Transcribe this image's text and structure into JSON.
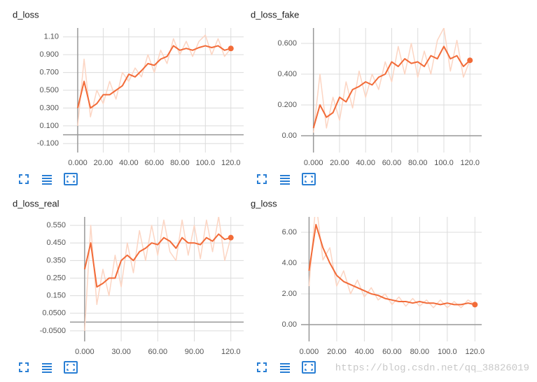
{
  "chart_data": [
    {
      "type": "line",
      "title": "d_loss",
      "x": [
        0,
        5,
        10,
        15,
        20,
        25,
        30,
        35,
        40,
        45,
        50,
        55,
        60,
        65,
        70,
        75,
        80,
        85,
        90,
        95,
        100,
        105,
        110,
        115,
        120
      ],
      "xlim": [
        -11.5,
        130
      ],
      "ylim": [
        -0.2,
        1.2
      ],
      "xticks": [
        {
          "value": 0,
          "label": "0.000"
        },
        {
          "value": 20,
          "label": "20.00"
        },
        {
          "value": 40,
          "label": "40.00"
        },
        {
          "value": 60,
          "label": "60.00"
        },
        {
          "value": 80,
          "label": "80.00"
        },
        {
          "value": 100,
          "label": "100.0"
        },
        {
          "value": 120,
          "label": "120.0"
        }
      ],
      "yticks": [
        {
          "value": -0.1,
          "label": "-0.100"
        },
        {
          "value": 0.1,
          "label": "0.100"
        },
        {
          "value": 0.3,
          "label": "0.300"
        },
        {
          "value": 0.5,
          "label": "0.500"
        },
        {
          "value": 0.7,
          "label": "0.700"
        },
        {
          "value": 0.9,
          "label": "0.900"
        },
        {
          "value": 1.1,
          "label": "1.10"
        }
      ],
      "grid": true,
      "series": [
        {
          "color": "#fcd5c3",
          "values": [
            0.1,
            0.85,
            0.2,
            0.5,
            0.35,
            0.6,
            0.4,
            0.7,
            0.6,
            0.75,
            0.65,
            0.9,
            0.7,
            0.95,
            0.8,
            1.08,
            0.9,
            1.05,
            0.88,
            1.05,
            1.12,
            0.9,
            1.08,
            0.88,
            0.97
          ]
        },
        {
          "color": "#f26b38",
          "values": [
            0.3,
            0.6,
            0.3,
            0.35,
            0.45,
            0.45,
            0.5,
            0.55,
            0.68,
            0.65,
            0.72,
            0.8,
            0.78,
            0.85,
            0.88,
            1.0,
            0.95,
            0.97,
            0.95,
            0.98,
            1.0,
            0.98,
            1.0,
            0.95,
            0.97
          ]
        }
      ]
    },
    {
      "type": "line",
      "title": "d_loss_fake",
      "x": [
        0,
        5,
        10,
        15,
        20,
        25,
        30,
        35,
        40,
        45,
        50,
        55,
        60,
        65,
        70,
        75,
        80,
        85,
        90,
        95,
        100,
        105,
        110,
        115,
        120
      ],
      "xlim": [
        -9.5,
        129
      ],
      "ylim": [
        -0.109,
        0.7
      ],
      "xticks": [
        {
          "value": 0,
          "label": "0.000"
        },
        {
          "value": 20,
          "label": "20.00"
        },
        {
          "value": 40,
          "label": "40.00"
        },
        {
          "value": 60,
          "label": "60.00"
        },
        {
          "value": 80,
          "label": "80.00"
        },
        {
          "value": 100,
          "label": "100.0"
        },
        {
          "value": 120,
          "label": "120.0"
        }
      ],
      "yticks": [
        {
          "value": 0,
          "label": "0.00"
        },
        {
          "value": 0.2,
          "label": "0.200"
        },
        {
          "value": 0.4,
          "label": "0.400"
        },
        {
          "value": 0.6,
          "label": "0.600"
        }
      ],
      "grid": true,
      "series": [
        {
          "color": "#fcd5c3",
          "values": [
            0.02,
            0.4,
            0.05,
            0.25,
            0.1,
            0.35,
            0.18,
            0.42,
            0.25,
            0.4,
            0.3,
            0.48,
            0.35,
            0.58,
            0.4,
            0.6,
            0.38,
            0.55,
            0.4,
            0.62,
            0.7,
            0.42,
            0.62,
            0.38,
            0.49
          ]
        },
        {
          "color": "#f26b38",
          "values": [
            0.05,
            0.2,
            0.12,
            0.15,
            0.25,
            0.22,
            0.3,
            0.32,
            0.35,
            0.33,
            0.38,
            0.4,
            0.48,
            0.45,
            0.5,
            0.47,
            0.48,
            0.45,
            0.52,
            0.5,
            0.58,
            0.5,
            0.52,
            0.45,
            0.49
          ]
        }
      ]
    },
    {
      "type": "line",
      "title": "d_loss_real",
      "x": [
        0,
        5,
        10,
        15,
        20,
        25,
        30,
        35,
        40,
        45,
        50,
        55,
        60,
        65,
        70,
        75,
        80,
        85,
        90,
        95,
        100,
        105,
        110,
        115,
        120
      ],
      "xlim": [
        -12,
        130.5
      ],
      "ylim": [
        -0.11,
        0.598
      ],
      "xticks": [
        {
          "value": 0,
          "label": "0.000"
        },
        {
          "value": 30,
          "label": "30.00"
        },
        {
          "value": 60,
          "label": "60.00"
        },
        {
          "value": 90,
          "label": "90.00"
        },
        {
          "value": 120,
          "label": "120.0"
        }
      ],
      "yticks": [
        {
          "value": -0.05,
          "label": "-0.0500"
        },
        {
          "value": 0.05,
          "label": "0.0500"
        },
        {
          "value": 0.15,
          "label": "0.150"
        },
        {
          "value": 0.25,
          "label": "0.250"
        },
        {
          "value": 0.35,
          "label": "0.350"
        },
        {
          "value": 0.45,
          "label": "0.450"
        },
        {
          "value": 0.55,
          "label": "0.550"
        }
      ],
      "grid": true,
      "series": [
        {
          "color": "#fcd5c3",
          "values": [
            -0.05,
            0.55,
            0.1,
            0.3,
            0.15,
            0.38,
            0.2,
            0.45,
            0.28,
            0.52,
            0.35,
            0.55,
            0.38,
            0.58,
            0.4,
            0.35,
            0.58,
            0.38,
            0.55,
            0.36,
            0.58,
            0.4,
            0.6,
            0.35,
            0.48
          ]
        },
        {
          "color": "#f26b38",
          "values": [
            0.3,
            0.45,
            0.2,
            0.22,
            0.25,
            0.25,
            0.35,
            0.38,
            0.35,
            0.4,
            0.42,
            0.45,
            0.44,
            0.48,
            0.46,
            0.42,
            0.48,
            0.45,
            0.45,
            0.44,
            0.48,
            0.46,
            0.5,
            0.47,
            0.48
          ]
        }
      ]
    },
    {
      "type": "line",
      "title": "g_loss",
      "x": [
        0,
        5,
        10,
        15,
        20,
        25,
        30,
        35,
        40,
        45,
        50,
        55,
        60,
        65,
        70,
        75,
        80,
        85,
        90,
        95,
        100,
        105,
        110,
        115,
        120
      ],
      "xlim": [
        -5.8,
        124.9
      ],
      "ylim": [
        -1.09,
        7.0
      ],
      "xticks": [
        {
          "value": 0,
          "label": "0.000"
        },
        {
          "value": 20,
          "label": "20.00"
        },
        {
          "value": 40,
          "label": "40.00"
        },
        {
          "value": 60,
          "label": "60.00"
        },
        {
          "value": 80,
          "label": "80.00"
        },
        {
          "value": 100,
          "label": "100.0"
        },
        {
          "value": 120,
          "label": "120.0"
        }
      ],
      "yticks": [
        {
          "value": 0,
          "label": "0.00"
        },
        {
          "value": 2,
          "label": "2.00"
        },
        {
          "value": 4,
          "label": "4.00"
        },
        {
          "value": 6,
          "label": "6.00"
        }
      ],
      "grid": true,
      "series": [
        {
          "color": "#fcd5c3",
          "values": [
            2.5,
            8.0,
            4.2,
            5.0,
            2.5,
            3.5,
            2.0,
            2.9,
            1.8,
            2.4,
            1.6,
            2.0,
            1.3,
            1.8,
            1.2,
            1.7,
            1.2,
            1.6,
            1.1,
            1.6,
            1.1,
            1.5,
            1.1,
            1.6,
            1.3
          ]
        },
        {
          "color": "#f26b38",
          "values": [
            3.5,
            6.5,
            5.0,
            4.0,
            3.2,
            2.8,
            2.6,
            2.4,
            2.2,
            2.0,
            1.9,
            1.7,
            1.6,
            1.5,
            1.5,
            1.4,
            1.5,
            1.4,
            1.4,
            1.3,
            1.4,
            1.3,
            1.3,
            1.4,
            1.3
          ]
        }
      ]
    }
  ],
  "watermark": "https://blog.csdn.net/qq_38826019"
}
